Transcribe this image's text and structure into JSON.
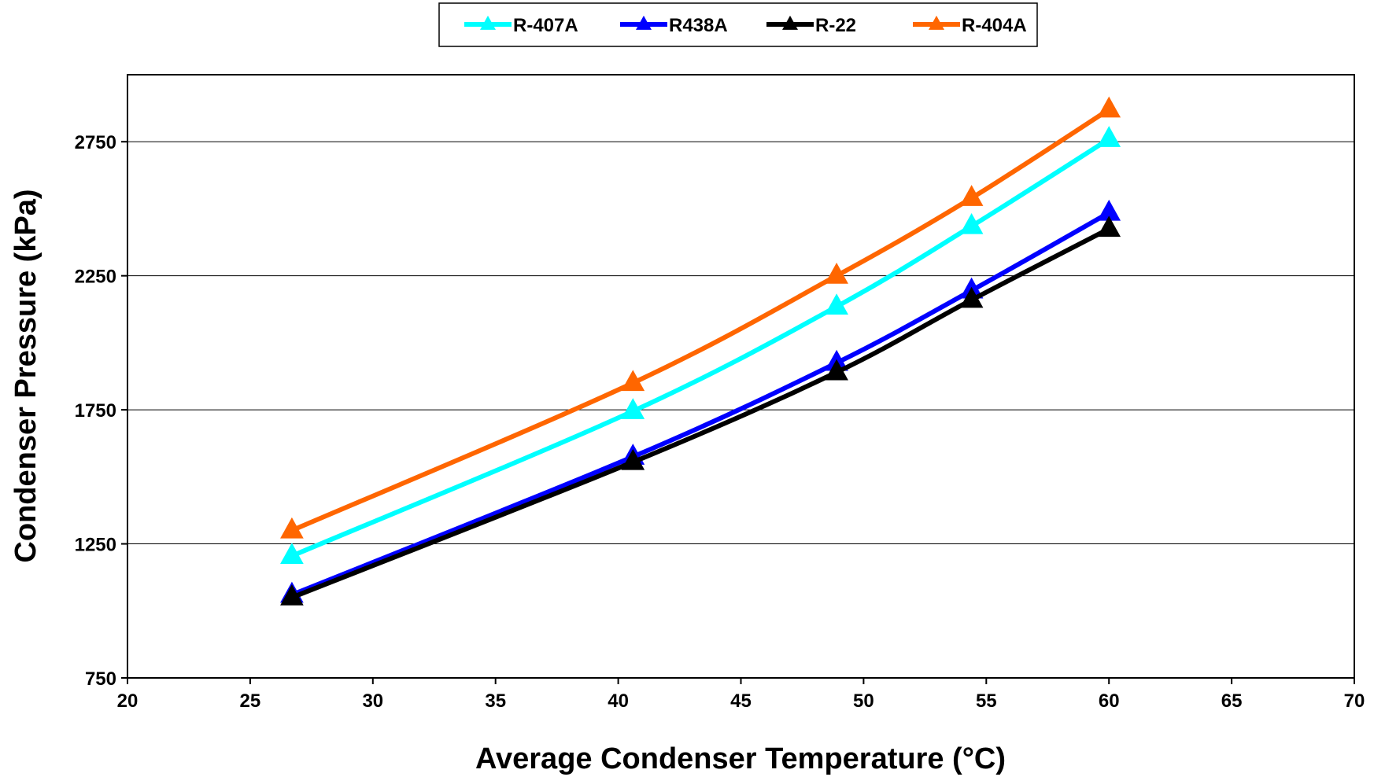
{
  "chart_data": {
    "type": "line",
    "xlabel": "Average Condenser Temperature (°C)",
    "ylabel": "Condenser Pressure (kPa)",
    "xlim": [
      20,
      70
    ],
    "ylim": [
      750,
      3000
    ],
    "xticks": [
      20,
      25,
      30,
      35,
      40,
      45,
      50,
      55,
      60,
      65,
      70
    ],
    "yticks": [
      750,
      1250,
      1750,
      2250,
      2750
    ],
    "grid": "horizontal",
    "legend_position": "top-center",
    "series": [
      {
        "name": "R-407A",
        "color": "#00FFFF",
        "marker": "triangle",
        "x": [
          26.7,
          40.6,
          48.9,
          54.4,
          60.0
        ],
        "y": [
          1205,
          1745,
          2135,
          2435,
          2760
        ]
      },
      {
        "name": "R438A",
        "color": "#0000FF",
        "marker": "triangle",
        "x": [
          26.7,
          40.6,
          48.9,
          54.4,
          60.0
        ],
        "y": [
          1060,
          1575,
          1925,
          2195,
          2485
        ]
      },
      {
        "name": "R-22",
        "color": "#000000",
        "marker": "triangle",
        "x": [
          26.7,
          40.6,
          48.9,
          54.4,
          60.0
        ],
        "y": [
          1050,
          1555,
          1890,
          2160,
          2425
        ]
      },
      {
        "name": "R-404A",
        "color": "#FF6600",
        "marker": "triangle",
        "x": [
          26.7,
          40.6,
          48.9,
          54.4,
          60.0
        ],
        "y": [
          1300,
          1850,
          2250,
          2540,
          2870
        ]
      }
    ]
  }
}
